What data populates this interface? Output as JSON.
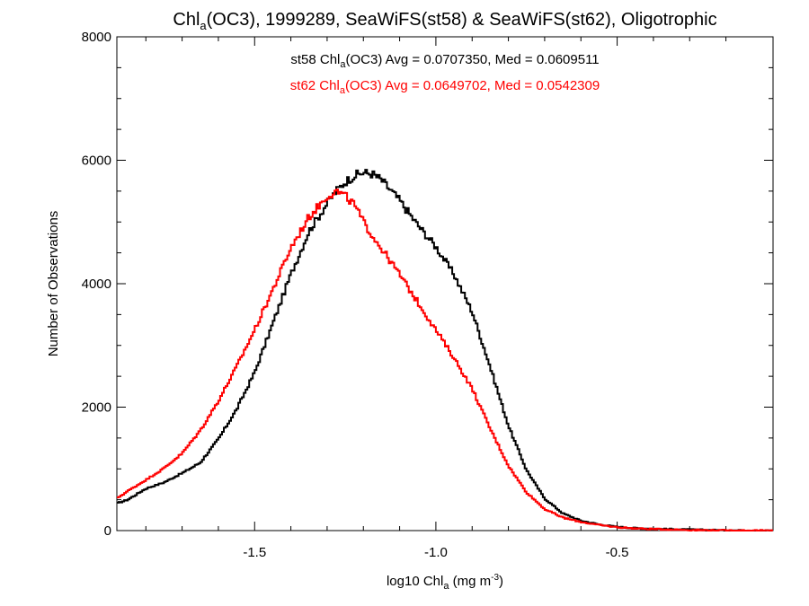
{
  "chart_data": {
    "type": "line",
    "style": "histogram-step",
    "title": {
      "pre": "Chl",
      "sub": "a",
      "post": "(OC3), 1999289, SeaWiFS(st58) & SeaWiFS(st62), Oligotrophic"
    },
    "xlabel": {
      "pre": "log10 Chl",
      "sub": "a",
      "mid": " (mg m",
      "sup": "-3",
      "post": ")"
    },
    "ylabel": "Number of Observations",
    "xlim": [
      -1.88,
      -0.07
    ],
    "ylim": [
      0,
      8000
    ],
    "xticks": [
      {
        "value": -1.5,
        "label": "-1.5"
      },
      {
        "value": -1.0,
        "label": "-1.0"
      },
      {
        "value": -0.5,
        "label": "-0.5"
      }
    ],
    "yticks": [
      {
        "value": 0,
        "label": "0"
      },
      {
        "value": 2000,
        "label": "2000"
      },
      {
        "value": 4000,
        "label": "4000"
      },
      {
        "value": 6000,
        "label": "6000"
      },
      {
        "value": 8000,
        "label": "8000"
      }
    ],
    "grid": false,
    "stats": [
      {
        "color": "#000000",
        "pre": "st58 Chl",
        "sub": "a",
        "post": "(OC3) Avg = 0.0707350, Med = 0.0609511"
      },
      {
        "color": "#ff0000",
        "pre": "st62 Chl",
        "sub": "a",
        "post": "(OC3) Avg = 0.0649702, Med = 0.0542309"
      }
    ],
    "x": [
      -1.88,
      -1.85,
      -1.8,
      -1.75,
      -1.7,
      -1.65,
      -1.6,
      -1.55,
      -1.5,
      -1.45,
      -1.4,
      -1.35,
      -1.3,
      -1.275,
      -1.25,
      -1.225,
      -1.2,
      -1.175,
      -1.15,
      -1.1,
      -1.05,
      -1.0,
      -0.95,
      -0.9,
      -0.85,
      -0.8,
      -0.75,
      -0.7,
      -0.65,
      -0.6,
      -0.55,
      -0.5,
      -0.45,
      -0.4,
      -0.3,
      -0.2,
      -0.07
    ],
    "series": [
      {
        "color": "#000000",
        "values": [
          440,
          500,
          680,
          780,
          930,
          1100,
          1480,
          1960,
          2560,
          3350,
          4150,
          4850,
          5300,
          5500,
          5650,
          5750,
          5800,
          5780,
          5680,
          5350,
          4950,
          4600,
          4150,
          3550,
          2650,
          1700,
          980,
          520,
          280,
          160,
          100,
          60,
          40,
          30,
          15,
          5,
          0
        ]
      },
      {
        "color": "#ff0000",
        "values": [
          520,
          640,
          820,
          1010,
          1250,
          1620,
          2100,
          2650,
          3250,
          3900,
          4580,
          5080,
          5420,
          5500,
          5420,
          5280,
          5000,
          4780,
          4570,
          4150,
          3700,
          3250,
          2800,
          2300,
          1650,
          1050,
          620,
          350,
          210,
          140,
          90,
          55,
          35,
          25,
          10,
          3,
          0
        ]
      }
    ]
  }
}
